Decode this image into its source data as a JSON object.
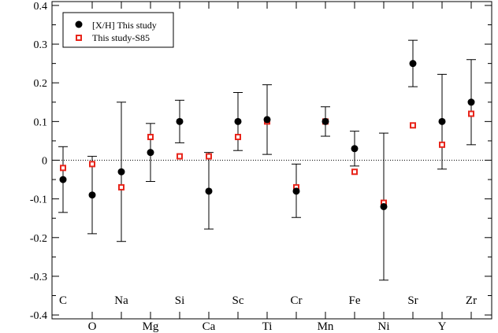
{
  "chart_data": {
    "type": "scatter",
    "title": "",
    "xlabel": "",
    "ylabel": "",
    "ylim": [
      -0.41,
      0.41
    ],
    "y_ticks": [
      "-0.4",
      "-0.3",
      "-0.2",
      "-0.1",
      "0",
      "0.1",
      "0.2",
      "0.3",
      "0.4"
    ],
    "grid": false,
    "reference_line_y": 0,
    "legend_position": "top-left",
    "x_ticks": [
      "1",
      "2",
      "3",
      "4",
      "5",
      "6",
      "7",
      "8",
      "9",
      "10",
      "11",
      "12",
      "13",
      "14"
    ],
    "categories": [
      "C",
      "O",
      "Na",
      "Mg",
      "Si",
      "Ca",
      "Sc",
      "Ti",
      "Cr",
      "Mn",
      "Fe",
      "Ni",
      "Sr",
      "Y",
      "Zr"
    ],
    "category_label_row": [
      "top",
      "bottom",
      "top",
      "bottom",
      "top",
      "bottom",
      "top",
      "bottom",
      "top",
      "bottom",
      "top",
      "bottom",
      "top",
      "bottom",
      "top"
    ],
    "series": [
      {
        "name": "[X/H] This study",
        "marker": "filled-circle",
        "color": "#000000",
        "values": [
          -0.05,
          -0.09,
          -0.03,
          0.02,
          0.1,
          -0.08,
          0.1,
          0.105,
          -0.08,
          0.1,
          0.03,
          -0.12,
          0.25,
          0.1,
          0.15
        ],
        "error_low": [
          -0.135,
          -0.19,
          -0.21,
          -0.055,
          0.045,
          -0.178,
          0.025,
          0.015,
          -0.148,
          0.062,
          -0.015,
          -0.31,
          0.19,
          -0.023,
          0.04
        ],
        "error_high": [
          0.035,
          0.01,
          0.15,
          0.095,
          0.155,
          0.02,
          0.175,
          0.195,
          -0.01,
          0.138,
          0.075,
          0.07,
          0.31,
          0.222,
          0.26
        ]
      },
      {
        "name": "This study-S85",
        "marker": "open-square",
        "color": "#e8251b",
        "values": [
          -0.02,
          -0.01,
          -0.07,
          0.06,
          0.01,
          0.01,
          0.06,
          0.1,
          -0.07,
          0.1,
          -0.03,
          -0.11,
          0.09,
          0.04,
          0.12
        ]
      }
    ]
  }
}
